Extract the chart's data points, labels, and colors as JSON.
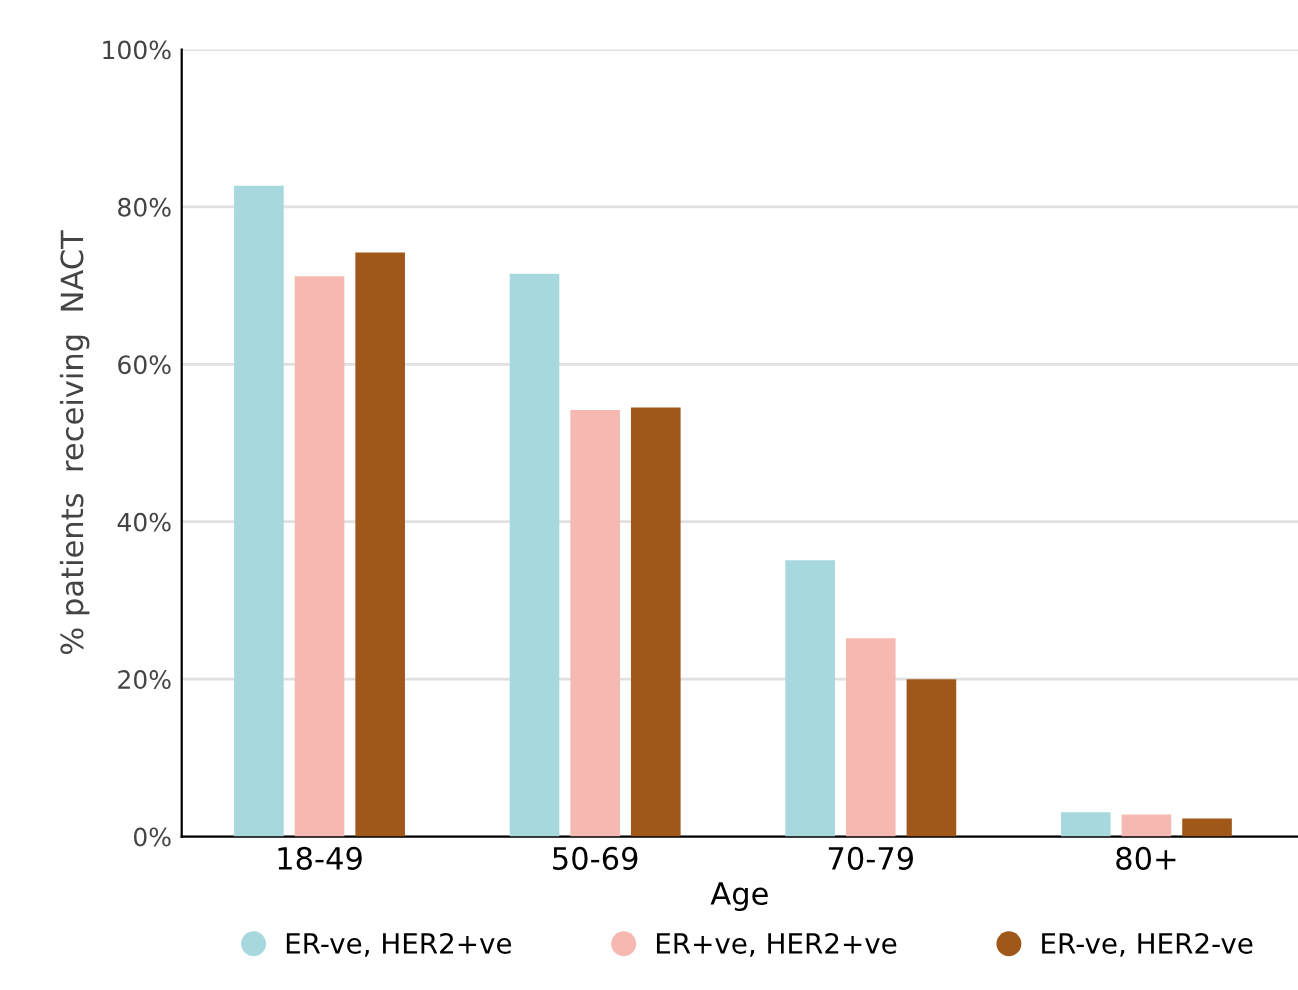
{
  "chart_data": {
    "type": "bar",
    "xlabel": "Age",
    "ylabel": "% patients  receiving  NACT",
    "categories": [
      "18-49",
      "50-69",
      "70-79",
      "80+"
    ],
    "series": [
      {
        "name": "ER-ve, HER2+ve",
        "color": "#a6d8de",
        "values": [
          82.7,
          71.5,
          35.1,
          3.1
        ]
      },
      {
        "name": "ER+ve, HER2+ve",
        "color": "#f5b9b1",
        "values": [
          71.2,
          54.2,
          25.2,
          2.8
        ]
      },
      {
        "name": "ER-ve, HER2-ve",
        "color": "#a0581a",
        "values": [
          74.2,
          54.5,
          20.0,
          2.3
        ]
      }
    ],
    "ylim": [
      0,
      100
    ],
    "yticks": [
      {
        "value": 0,
        "label": "0%"
      },
      {
        "value": 20,
        "label": "20%"
      },
      {
        "value": 40,
        "label": "40%"
      },
      {
        "value": 60,
        "label": "60%"
      },
      {
        "value": 80,
        "label": "80%"
      },
      {
        "value": 100,
        "label": "100%"
      }
    ],
    "grid": "y",
    "legend": "bottom"
  }
}
